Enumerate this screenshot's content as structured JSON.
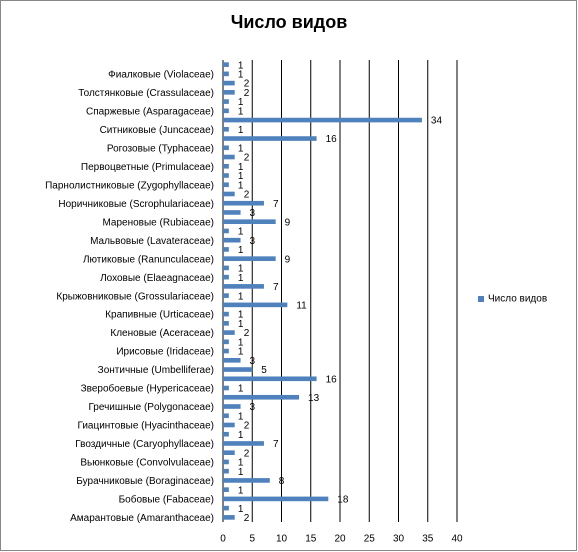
{
  "chart_data": {
    "type": "bar",
    "orientation": "horizontal",
    "title": "Число видов",
    "categories": [
      null,
      "Фиалковые (Violaceae)",
      null,
      "Толстянковые (Crassulaceae)",
      null,
      "Спаржевые (Asparagaceae)",
      null,
      "Ситниковые (Juncaceae)",
      null,
      "Рогозовые (Typhaceae)",
      null,
      "Первоцветные (Primulaceae)",
      null,
      "Парнолистниковые (Zygophyllaceae)",
      null,
      "Норичниковые (Scrophulariaceae)",
      null,
      "Мареновые (Rubiaceae)",
      null,
      "Мальвовые (Lavateraceae)",
      null,
      "Лютиковые   (Ranunculaceae)",
      null,
      "Лоховые (Elaeagnaceae)",
      null,
      "Крыжовниковые (Grossulariaceae)",
      null,
      "Крапивные (Urticaceae)",
      null,
      "Кленовые (Aceraceae)",
      null,
      "Ирисовые (Iridaceae)",
      null,
      "Зонтичные (Umbelliferae)",
      null,
      "Зверобоевые (Hypericaceae)",
      null,
      "Гречишные (Polygonaceae)",
      null,
      "Гиацинтовые (Hyacinthaceae)",
      null,
      "Гвоздичные (Caryophyllaceae)",
      null,
      "Вьюнковые (Convolvulaceae)",
      null,
      "Бурачниковые (Boraginaceae)",
      null,
      "Бобовые (Fabaceae)",
      null,
      "Амарантовые (Amaranthaceae)"
    ],
    "series": [
      {
        "name": "Число видов",
        "color": "#4f81bd",
        "values": [
          1,
          1,
          2,
          2,
          1,
          1,
          34,
          1,
          16,
          1,
          2,
          1,
          1,
          1,
          2,
          7,
          3,
          9,
          1,
          3,
          1,
          9,
          1,
          1,
          7,
          1,
          11,
          1,
          1,
          2,
          1,
          1,
          3,
          5,
          16,
          1,
          13,
          3,
          1,
          2,
          1,
          7,
          2,
          1,
          1,
          8,
          1,
          18,
          1,
          2
        ]
      }
    ],
    "xlim": [
      0,
      40
    ],
    "xticks": [
      0,
      5,
      10,
      15,
      20,
      25,
      30,
      35,
      40
    ],
    "grid": true,
    "legend": "right"
  }
}
